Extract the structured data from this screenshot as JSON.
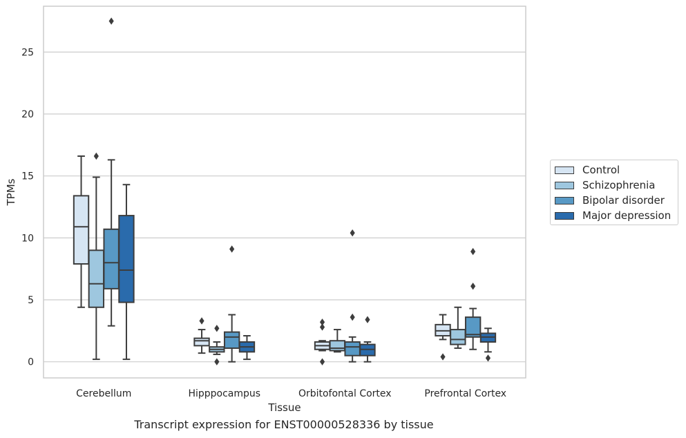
{
  "chart_data": {
    "type": "box",
    "title": "",
    "caption": "Transcript expression for ENST00000528336 by tissue",
    "xlabel": "Tissue",
    "ylabel": "TPMs",
    "ylim": [
      -1.3,
      28.7
    ],
    "yticks": [
      0,
      5,
      10,
      15,
      20,
      25
    ],
    "grid": "horizontal",
    "legend_position": "right",
    "categories": [
      "Cerebellum",
      "Hipppocampus",
      "Orbitofontal Cortex",
      "Prefrontal Cortex"
    ],
    "series": [
      {
        "name": "Control",
        "color": "#d6e5f3",
        "boxes": [
          {
            "whislo": 4.4,
            "q1": 7.9,
            "med": 10.9,
            "q3": 13.4,
            "whishi": 16.6,
            "fliers": []
          },
          {
            "whislo": 0.7,
            "q1": 1.3,
            "med": 1.7,
            "q3": 1.9,
            "whishi": 2.6,
            "fliers": [
              3.3
            ]
          },
          {
            "whislo": 0.9,
            "q1": 1.0,
            "med": 1.3,
            "q3": 1.6,
            "whishi": 1.7,
            "fliers": [
              0.0,
              2.8,
              3.2
            ]
          },
          {
            "whislo": 1.8,
            "q1": 2.1,
            "med": 2.5,
            "q3": 3.0,
            "whishi": 3.8,
            "fliers": [
              0.4
            ]
          }
        ]
      },
      {
        "name": "Schizophrenia",
        "color": "#9ec7df",
        "boxes": [
          {
            "whislo": 0.2,
            "q1": 4.4,
            "med": 6.3,
            "q3": 9.0,
            "whishi": 14.9,
            "fliers": [
              16.6
            ]
          },
          {
            "whislo": 0.6,
            "q1": 0.8,
            "med": 1.0,
            "q3": 1.2,
            "whishi": 1.6,
            "fliers": [
              0.0,
              2.7
            ]
          },
          {
            "whislo": 0.8,
            "q1": 0.9,
            "med": 1.1,
            "q3": 1.7,
            "whishi": 2.6,
            "fliers": []
          },
          {
            "whislo": 1.1,
            "q1": 1.4,
            "med": 1.8,
            "q3": 2.6,
            "whishi": 4.4,
            "fliers": []
          }
        ]
      },
      {
        "name": "Bipolar disorder",
        "color": "#5899c5",
        "boxes": [
          {
            "whislo": 2.9,
            "q1": 5.9,
            "med": 8.0,
            "q3": 10.7,
            "whishi": 16.3,
            "fliers": [
              27.5
            ]
          },
          {
            "whislo": 0.0,
            "q1": 1.1,
            "med": 2.0,
            "q3": 2.4,
            "whishi": 3.8,
            "fliers": [
              9.1
            ]
          },
          {
            "whislo": 0.0,
            "q1": 0.5,
            "med": 1.2,
            "q3": 1.6,
            "whishi": 2.0,
            "fliers": [
              3.6,
              10.4
            ]
          },
          {
            "whislo": 1.0,
            "q1": 2.0,
            "med": 2.2,
            "q3": 3.6,
            "whishi": 4.3,
            "fliers": [
              6.1,
              8.9
            ]
          }
        ]
      },
      {
        "name": "Major depression",
        "color": "#2a6bac",
        "boxes": [
          {
            "whislo": 0.2,
            "q1": 4.8,
            "med": 7.4,
            "q3": 11.8,
            "whishi": 14.3,
            "fliers": []
          },
          {
            "whislo": 0.2,
            "q1": 0.8,
            "med": 1.2,
            "q3": 1.6,
            "whishi": 2.1,
            "fliers": []
          },
          {
            "whislo": 0.0,
            "q1": 0.5,
            "med": 1.0,
            "q3": 1.4,
            "whishi": 1.6,
            "fliers": [
              3.4
            ]
          },
          {
            "whislo": 0.8,
            "q1": 1.6,
            "med": 2.0,
            "q3": 2.3,
            "whishi": 2.7,
            "fliers": [
              0.3
            ]
          }
        ]
      }
    ]
  }
}
